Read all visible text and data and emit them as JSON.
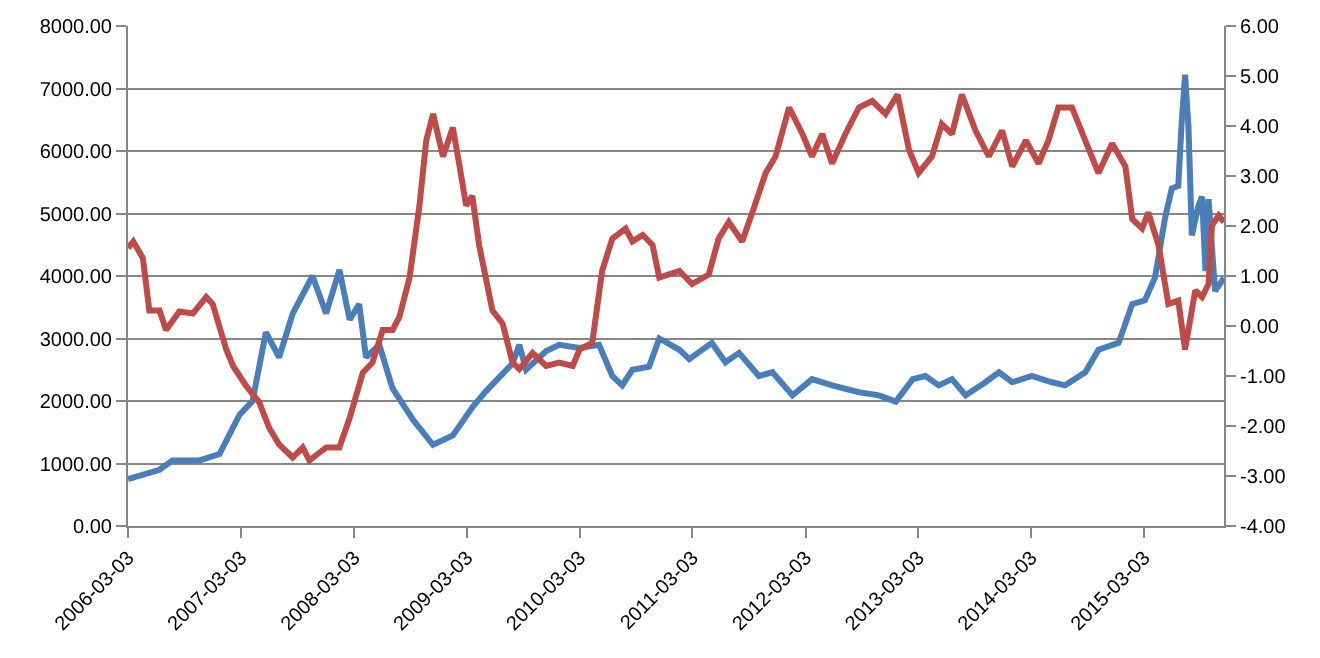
{
  "chart_data": {
    "type": "line",
    "grid": "y",
    "marker": "none",
    "line_style": "solid",
    "xlim": [
      "2006-03-03",
      "2015-11-17"
    ],
    "xticks": [
      "2006-03-03",
      "2007-03-03",
      "2008-03-03",
      "2009-03-03",
      "2010-03-03",
      "2011-03-03",
      "2012-03-03",
      "2013-03-03",
      "2014-03-03",
      "2015-03-03"
    ],
    "ylim": [
      0,
      8000
    ],
    "yticks": [
      {
        "value": 0,
        "label": "0.00"
      },
      {
        "value": 1000,
        "label": "1000.00"
      },
      {
        "value": 2000,
        "label": "2000.00"
      },
      {
        "value": 3000,
        "label": "3000.00"
      },
      {
        "value": 4000,
        "label": "4000.00"
      },
      {
        "value": 5000,
        "label": "5000.00"
      },
      {
        "value": 6000,
        "label": "6000.00"
      },
      {
        "value": 7000,
        "label": "7000.00"
      },
      {
        "value": 8000,
        "label": "8000.00"
      }
    ],
    "y2lim": [
      -4,
      6
    ],
    "y2ticks": [
      {
        "value": -4,
        "label": "-4.00"
      },
      {
        "value": -3,
        "label": "-3.00"
      },
      {
        "value": -2,
        "label": "-2.00"
      },
      {
        "value": -1,
        "label": "-1.00"
      },
      {
        "value": 0,
        "label": "0.00"
      },
      {
        "value": 1,
        "label": "1.00"
      },
      {
        "value": 2,
        "label": "2.00"
      },
      {
        "value": 3,
        "label": "3.00"
      },
      {
        "value": 4,
        "label": "4.00"
      },
      {
        "value": 5,
        "label": "5.00"
      },
      {
        "value": 6,
        "label": "6.00"
      }
    ],
    "series": [
      {
        "color": "#4a7ebb",
        "x": [
          "2006-03-03",
          "2006-06-13",
          "2006-07-25",
          "2006-10-20",
          "2006-12-24",
          "2007-02-27",
          "2007-04-10",
          "2007-05-23",
          "2007-07-05",
          "2007-08-18",
          "2007-10-21",
          "2007-12-04",
          "2008-01-16",
          "2008-02-18",
          "2008-03-20",
          "2008-04-11",
          "2008-05-24",
          "2008-07-06",
          "2008-09-10",
          "2008-11-14",
          "2009-01-17",
          "2009-03-21",
          "2009-05-03",
          "2009-07-29",
          "2009-08-20",
          "2009-09-11",
          "2009-11-15",
          "2009-12-27",
          "2010-03-03",
          "2010-05-05",
          "2010-06-17",
          "2010-07-19",
          "2010-08-21",
          "2010-10-14",
          "2010-11-16",
          "2011-01-20",
          "2011-02-21",
          "2011-05-05",
          "2011-06-18",
          "2011-08-01",
          "2011-10-04",
          "2011-11-17",
          "2012-01-21",
          "2012-03-24",
          "2012-05-28",
          "2012-08-23",
          "2012-10-27",
          "2012-12-20",
          "2013-02-13",
          "2013-03-26",
          "2013-05-08",
          "2013-06-20",
          "2013-08-03",
          "2013-10-06",
          "2013-11-19",
          "2014-01-01",
          "2014-03-05",
          "2014-05-09",
          "2014-06-21",
          "2014-08-25",
          "2014-10-07",
          "2014-12-11",
          "2015-01-24",
          "2015-03-06",
          "2015-04-08",
          "2015-05-10",
          "2015-06-01",
          "2015-06-22",
          "2015-07-03",
          "2015-07-14",
          "2015-07-25",
          "2015-08-05",
          "2015-08-26",
          "2015-09-07",
          "2015-09-18",
          "2015-09-28",
          "2015-10-19",
          "2015-11-17"
        ],
        "values": [
          750,
          900,
          1050,
          1050,
          1150,
          1780,
          2000,
          3100,
          2700,
          3400,
          4000,
          3400,
          4100,
          3300,
          3550,
          2700,
          2900,
          2200,
          1700,
          1300,
          1450,
          1900,
          2150,
          2600,
          2900,
          2500,
          2800,
          2900,
          2850,
          2900,
          2400,
          2250,
          2500,
          2550,
          3000,
          2820,
          2670,
          2930,
          2620,
          2770,
          2400,
          2460,
          2090,
          2350,
          2250,
          2140,
          2090,
          1990,
          2350,
          2400,
          2250,
          2350,
          2090,
          2300,
          2460,
          2300,
          2400,
          2300,
          2250,
          2460,
          2820,
          2930,
          3550,
          3610,
          3980,
          4920,
          5400,
          5440,
          6450,
          7220,
          6390,
          4650,
          5120,
          5270,
          4080,
          5230,
          3760,
          3970
        ]
      },
      {
        "color": "#be4b48",
        "axis": "y2",
        "x": [
          "2006-03-03",
          "2006-03-20",
          "2006-04-20",
          "2006-05-11",
          "2006-06-13",
          "2006-07-04",
          "2006-08-16",
          "2006-09-29",
          "2006-11-11",
          "2006-12-02",
          "2007-01-15",
          "2007-02-06",
          "2007-03-19",
          "2007-05-01",
          "2007-06-03",
          "2007-07-05",
          "2007-08-18",
          "2007-09-19",
          "2007-10-11",
          "2007-12-04",
          "2008-01-16",
          "2008-02-18",
          "2008-04-01",
          "2008-05-02",
          "2008-06-04",
          "2008-07-06",
          "2008-07-28",
          "2008-08-30",
          "2008-10-01",
          "2008-10-23",
          "2008-11-14",
          "2008-12-16",
          "2009-01-17",
          "2009-02-08",
          "2009-03-01",
          "2009-03-21",
          "2009-04-12",
          "2009-05-25",
          "2009-06-27",
          "2009-07-29",
          "2009-08-20",
          "2009-10-02",
          "2009-11-15",
          "2009-12-27",
          "2010-02-09",
          "2010-03-03",
          "2010-04-13",
          "2010-05-15",
          "2010-06-17",
          "2010-07-30",
          "2010-08-21",
          "2010-09-23",
          "2010-10-25",
          "2010-11-16",
          "2011-01-20",
          "2011-03-02",
          "2011-04-25",
          "2011-05-27",
          "2011-06-29",
          "2011-08-11",
          "2011-09-13",
          "2011-10-26",
          "2011-11-27",
          "2012-01-10",
          "2012-02-22",
          "2012-03-24",
          "2012-04-26",
          "2012-05-28",
          "2012-07-10",
          "2012-08-23",
          "2012-10-05",
          "2012-11-17",
          "2012-12-26",
          "2013-02-01",
          "2013-03-04",
          "2013-04-16",
          "2013-05-18",
          "2013-06-20",
          "2013-07-22",
          "2013-09-04",
          "2013-10-17",
          "2013-11-29",
          "2014-01-01",
          "2014-02-14",
          "2014-03-27",
          "2014-04-28",
          "2014-05-30",
          "2014-07-13",
          "2014-08-25",
          "2014-10-07",
          "2014-11-20",
          "2015-01-02",
          "2015-01-24",
          "2015-02-25",
          "2015-03-17",
          "2015-04-19",
          "2015-05-21",
          "2015-06-22",
          "2015-07-14",
          "2015-08-16",
          "2015-09-07",
          "2015-09-28",
          "2015-10-09",
          "2015-10-31",
          "2015-11-17"
        ],
        "values": [
          1.56,
          1.69,
          1.36,
          0.31,
          0.31,
          -0.08,
          0.29,
          0.25,
          0.58,
          0.44,
          -0.47,
          -0.8,
          -1.19,
          -1.52,
          -2.04,
          -2.37,
          -2.63,
          -2.43,
          -2.69,
          -2.43,
          -2.43,
          -1.84,
          -0.93,
          -0.73,
          -0.08,
          -0.08,
          0.18,
          0.97,
          2.41,
          3.71,
          4.24,
          3.39,
          3.97,
          3.19,
          2.41,
          2.6,
          1.62,
          0.31,
          0.05,
          -0.73,
          -0.86,
          -0.54,
          -0.8,
          -0.73,
          -0.8,
          -0.47,
          -0.34,
          1.1,
          1.75,
          1.95,
          1.69,
          1.82,
          1.62,
          0.97,
          1.1,
          0.84,
          1.03,
          1.75,
          2.08,
          1.69,
          2.27,
          3.06,
          3.39,
          4.37,
          3.84,
          3.39,
          3.84,
          3.25,
          3.84,
          4.37,
          4.5,
          4.24,
          4.63,
          3.52,
          3.06,
          3.39,
          4.04,
          3.84,
          4.63,
          3.91,
          3.39,
          3.91,
          3.19,
          3.71,
          3.25,
          3.71,
          4.37,
          4.37,
          3.71,
          3.06,
          3.65,
          3.19,
          2.14,
          1.95,
          2.27,
          1.62,
          0.44,
          0.51,
          -0.47,
          0.71,
          0.58,
          0.84,
          2.01,
          2.21,
          2.08
        ]
      }
    ]
  }
}
